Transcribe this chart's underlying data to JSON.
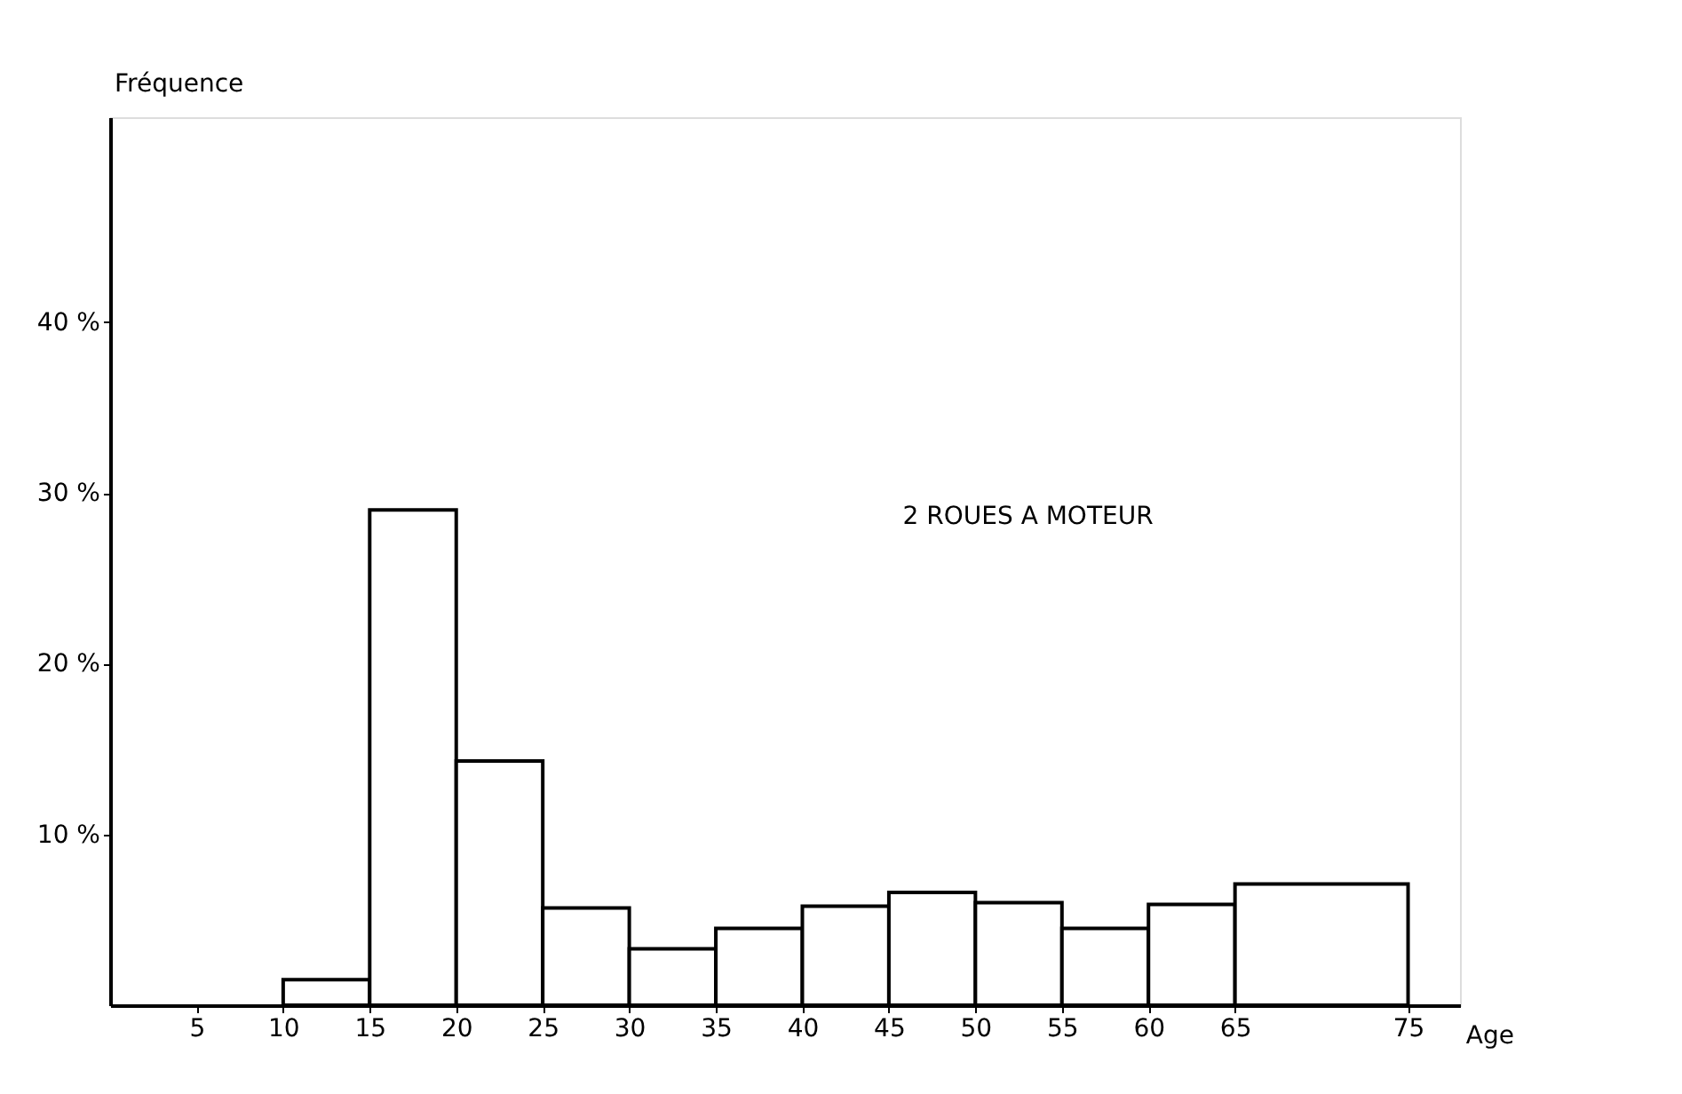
{
  "chart_data": {
    "type": "histogram",
    "xlabel": "Age",
    "ylabel": "Fréquence",
    "bins": [
      10,
      15,
      20,
      25,
      30,
      35,
      40,
      45,
      50,
      55,
      60,
      65,
      75
    ],
    "values": [
      1.5,
      29.0,
      14.3,
      5.7,
      3.3,
      4.5,
      5.8,
      6.6,
      6.0,
      4.5,
      5.9,
      7.1
    ],
    "color": "#000000",
    "xlim": [
      0,
      78
    ],
    "xticks": [
      5,
      10,
      15,
      20,
      25,
      30,
      35,
      40,
      45,
      50,
      55,
      60,
      65,
      75
    ],
    "ylim": [
      0,
      52
    ],
    "yticks": [
      {
        "value": 10,
        "label": "10 %"
      },
      {
        "value": 20,
        "label": "20 %"
      },
      {
        "value": 30,
        "label": "30 %"
      },
      {
        "value": 40,
        "label": "40 %"
      }
    ],
    "annotations": [
      "2 ROUES A MOTEUR"
    ],
    "grid": false
  }
}
